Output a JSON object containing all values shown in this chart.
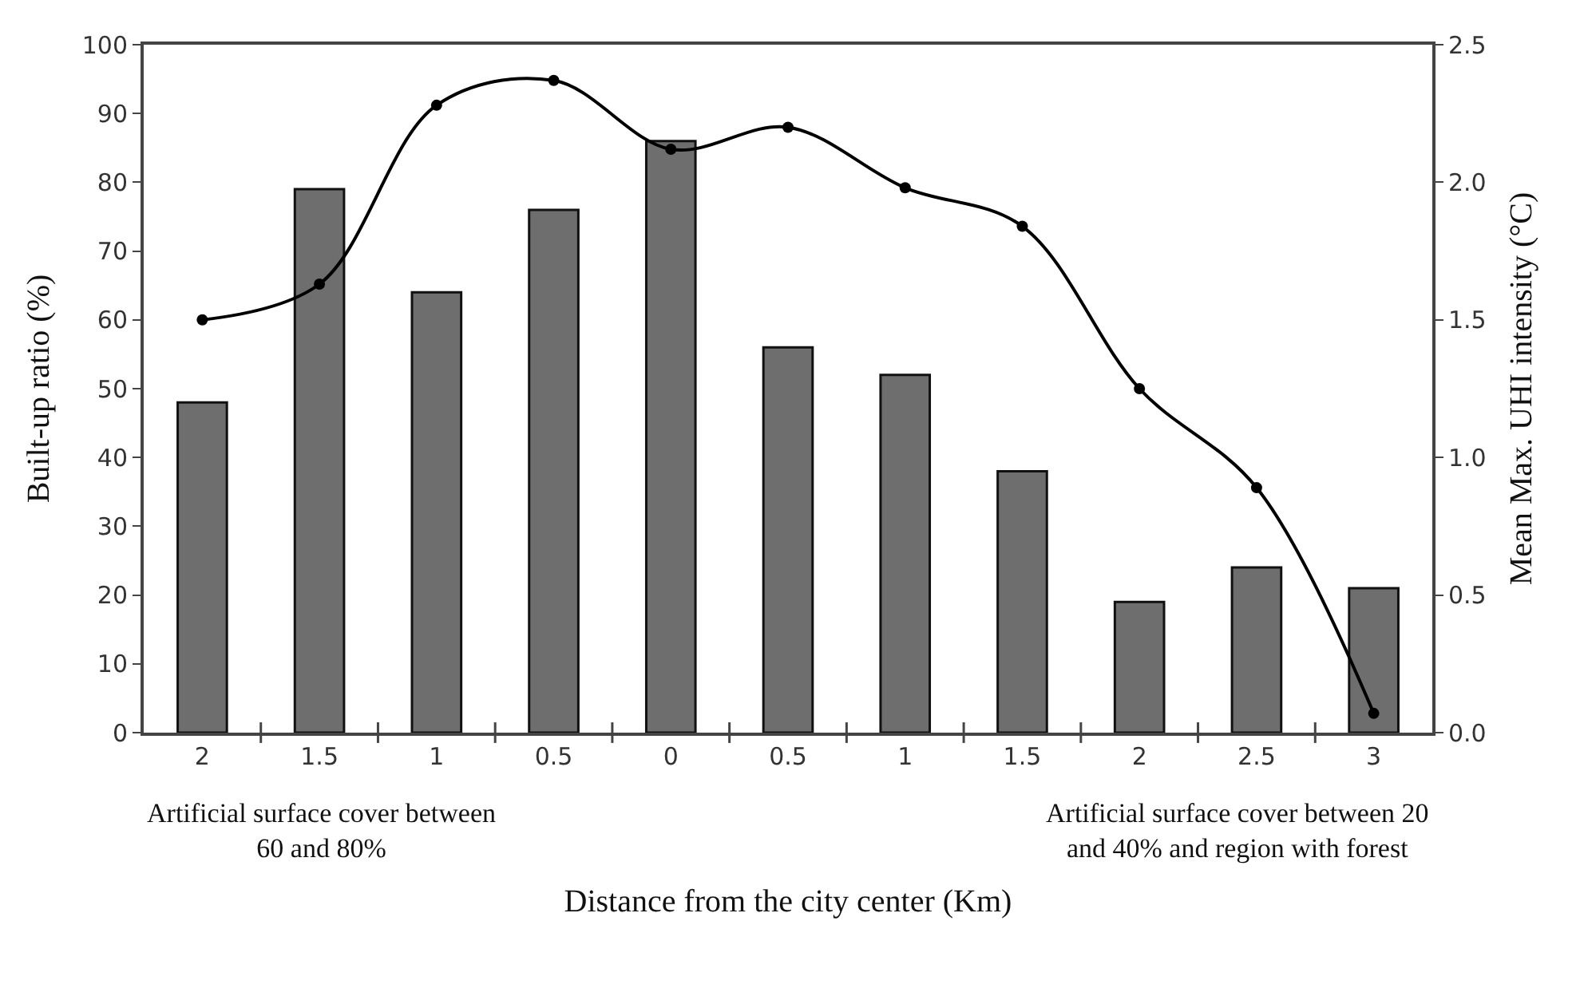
{
  "chart_data": {
    "type": "bar",
    "xlabel": "Distance from the city center (Km)",
    "ylabel": "Built-up ratio (%)",
    "y2label": "Mean Max. UHI intensity (°C)",
    "categories": [
      "2",
      "1.5",
      "1",
      "0.5",
      "0",
      "0.5",
      "1",
      "1.5",
      "2",
      "2.5",
      "3"
    ],
    "series": [
      {
        "color": "#6e6e6e",
        "values": [
          48,
          79,
          64,
          76,
          86,
          56,
          52,
          38,
          19,
          24,
          21
        ]
      },
      {
        "type": "line",
        "axis": "y2",
        "color": "#000000",
        "marker": "circle",
        "line_style": "solid",
        "values": [
          1.5,
          1.63,
          2.28,
          2.37,
          2.12,
          2.2,
          1.98,
          1.84,
          1.25,
          0.89,
          0.07
        ]
      }
    ],
    "ylim": [
      0,
      100
    ],
    "yticks": [
      0,
      10,
      20,
      30,
      40,
      50,
      60,
      70,
      80,
      90,
      100
    ],
    "y2lim": [
      0,
      2.5
    ],
    "y2ticks": [
      {
        "value": 0,
        "label": "0.0"
      },
      {
        "value": 0.5,
        "label": "0.5"
      },
      {
        "value": 1,
        "label": "1.0"
      },
      {
        "value": 1.5,
        "label": "1.5"
      },
      {
        "value": 2,
        "label": "2.0"
      },
      {
        "value": 2.5,
        "label": "2.5"
      }
    ],
    "annotations": [
      "Artificial surface cover between\n60 and 80%",
      "Artificial surface cover between 20\nand 40% and region with forest"
    ]
  }
}
